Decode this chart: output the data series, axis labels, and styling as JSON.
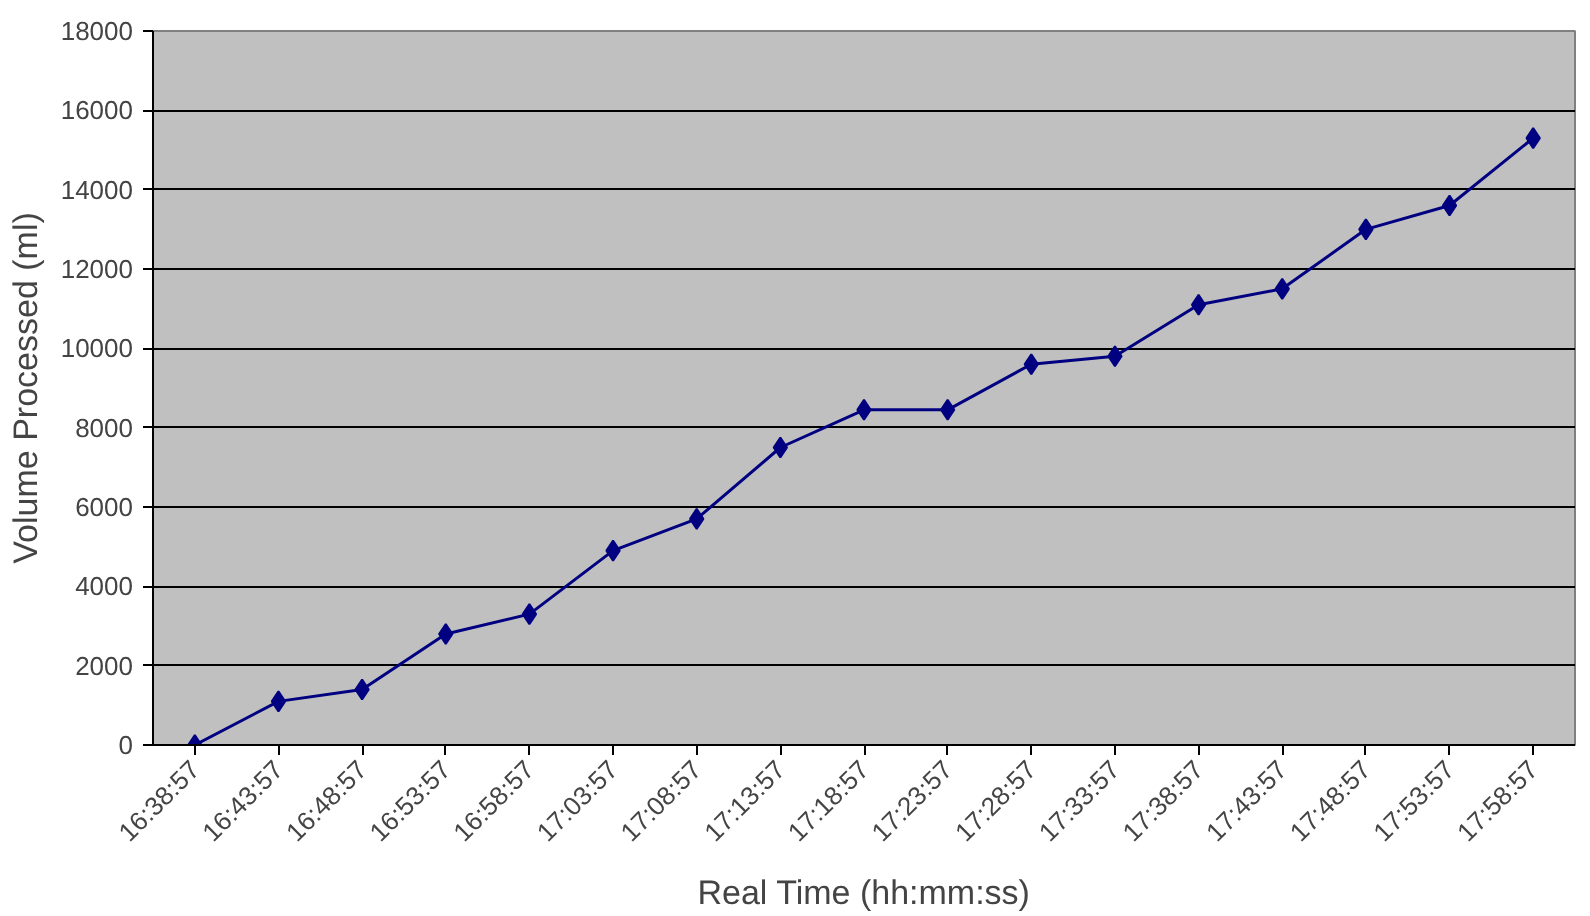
{
  "chart_data": {
    "type": "line",
    "xlabel": "Real Time (hh:mm:ss)",
    "ylabel": "Volume Processed (ml)",
    "categories": [
      "16:38:57",
      "16:43:57",
      "16:48:57",
      "16:53:57",
      "16:58:57",
      "17:03:57",
      "17:08:57",
      "17:13:57",
      "17:18:57",
      "17:23:57",
      "17:28:57",
      "17:33:57",
      "17:38:57",
      "17:43:57",
      "17:48:57",
      "17:53:57",
      "17:58:57"
    ],
    "series": [
      {
        "color": "#000080",
        "values": [
          0,
          1100,
          1400,
          2800,
          3300,
          4900,
          5700,
          7500,
          8450,
          8450,
          9600,
          9800,
          11100,
          11500,
          13000,
          13600,
          15300
        ]
      }
    ],
    "ylim": [
      0,
      18000
    ],
    "yticks": [
      0,
      2000,
      4000,
      6000,
      8000,
      10000,
      12000,
      14000,
      16000,
      18000
    ],
    "grid": "y",
    "marker": "diamond",
    "line_style": "solid"
  }
}
